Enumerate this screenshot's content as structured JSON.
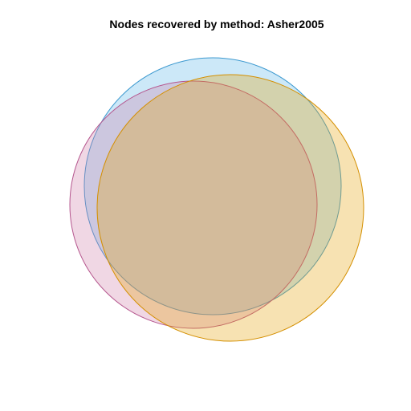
{
  "title": "Nodes recovered by method: Asher2005",
  "sets": [
    {
      "fill": "#56B4E9",
      "stroke": "#3E9AD0"
    },
    {
      "fill": "#CC79A7",
      "stroke": "#B5568E"
    },
    {
      "fill": "#E69F00",
      "stroke": "#D48F00"
    }
  ]
}
